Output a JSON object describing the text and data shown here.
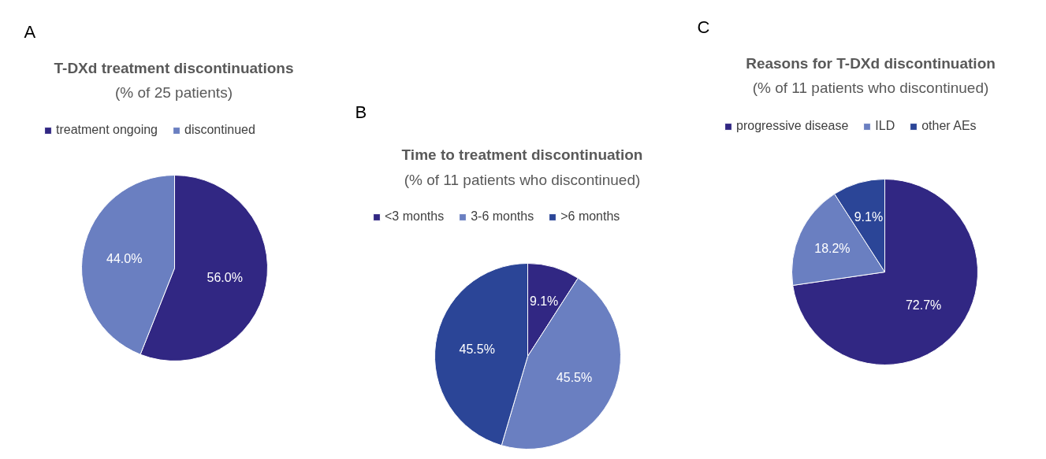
{
  "chart_data": [
    {
      "type": "pie",
      "title": "T-DXd treatment discontinuations",
      "subtitle": "(% of 25 patients)",
      "annotations": [
        "A"
      ],
      "categories": [
        "treatment ongoing",
        "discontinued"
      ],
      "values": [
        56.0,
        44.0
      ],
      "colors": [
        "#312783",
        "#6a7fc1"
      ],
      "value_labels": [
        "56.0%",
        "44.0%"
      ],
      "legend": "top"
    },
    {
      "type": "pie",
      "title": "Time to treatment discontinuation",
      "subtitle": "(% of 11 patients who discontinued)",
      "annotations": [
        "B"
      ],
      "categories": [
        "<3 months",
        "3-6 months",
        ">6 months"
      ],
      "values": [
        9.1,
        45.5,
        45.5
      ],
      "colors": [
        "#312783",
        "#6a7fc1",
        "#2b4597"
      ],
      "value_labels": [
        "9.1%",
        "45.5%",
        "45.5%"
      ],
      "legend": "top"
    },
    {
      "type": "pie",
      "title": "Reasons for T-DXd discontinuation",
      "subtitle": "(% of 11 patients who discontinued)",
      "annotations": [
        "C"
      ],
      "categories": [
        "progressive disease",
        "ILD",
        "other AEs"
      ],
      "values": [
        72.7,
        18.2,
        9.1
      ],
      "colors": [
        "#312783",
        "#6a7fc1",
        "#2b4597"
      ],
      "value_labels": [
        "72.7%",
        "18.2%",
        "9.1%"
      ],
      "legend": "top"
    }
  ]
}
